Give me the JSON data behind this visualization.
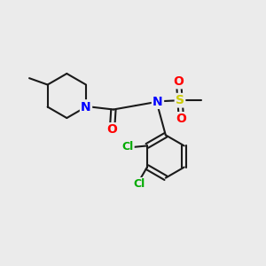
{
  "background_color": "#ebebeb",
  "atom_colors": {
    "C": "#1a1a1a",
    "N": "#0000ff",
    "O": "#ff0000",
    "S": "#cccc00",
    "Cl": "#00aa00"
  },
  "bond_color": "#1a1a1a",
  "bond_width": 1.5,
  "font_size_atoms": 10,
  "font_size_labels": 9
}
